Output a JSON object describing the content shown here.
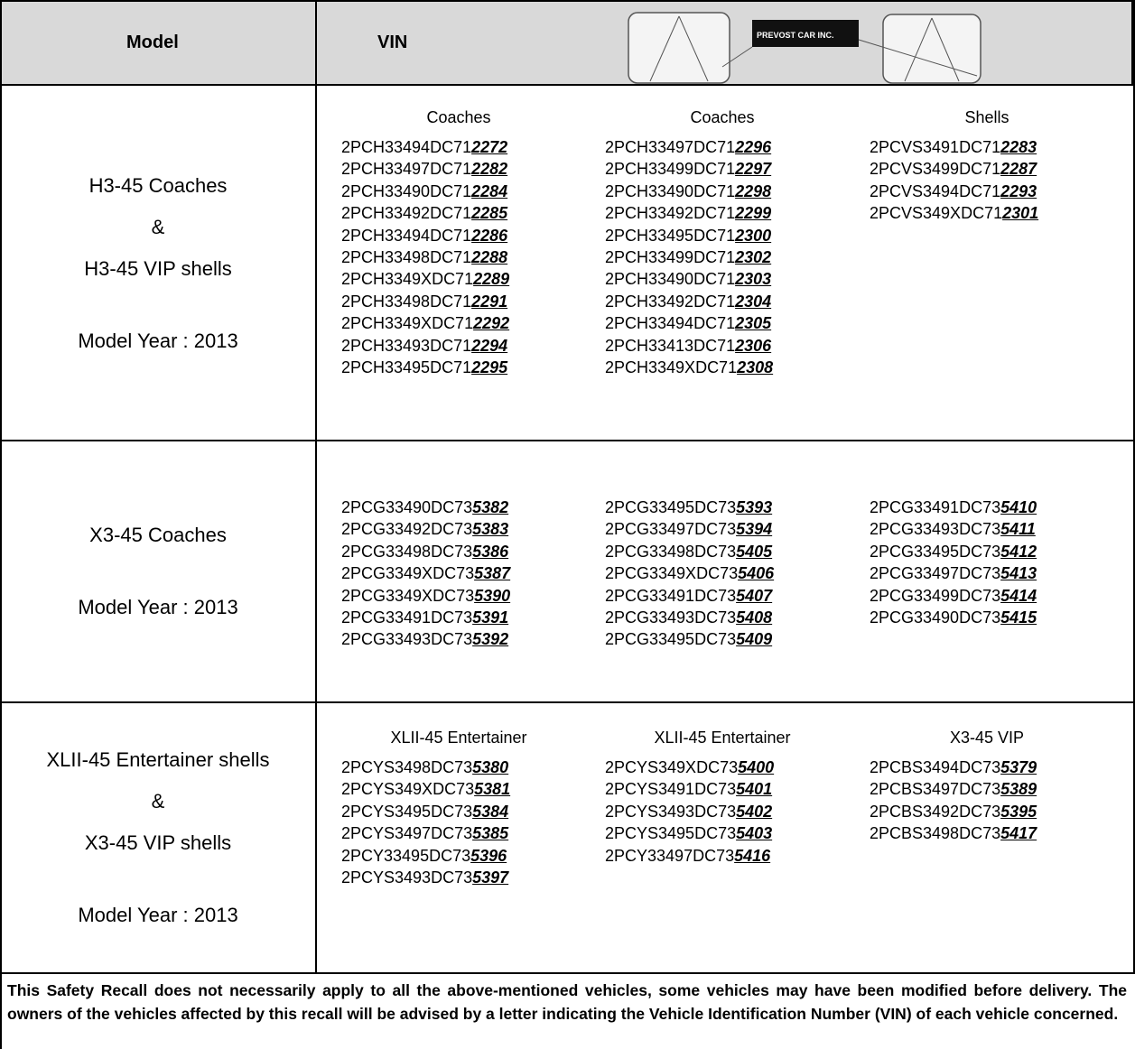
{
  "header": {
    "model": "Model",
    "vin": "VIN",
    "plate": "PREVOST CAR INC."
  },
  "rows": [
    {
      "model": [
        "H3-45 Coaches",
        "&",
        "H3-45 VIP shells",
        "Model Year : 2013"
      ],
      "groups": [
        {
          "title": "Coaches",
          "vins": [
            [
              "2PCH33494DC71",
              "2272"
            ],
            [
              "2PCH33497DC71",
              "2282"
            ],
            [
              "2PCH33490DC71",
              "2284"
            ],
            [
              "2PCH33492DC71",
              "2285"
            ],
            [
              "2PCH33494DC71",
              "2286"
            ],
            [
              "2PCH33498DC71",
              "2288"
            ],
            [
              "2PCH3349XDC71",
              "2289"
            ],
            [
              "2PCH33498DC71",
              "2291"
            ],
            [
              "2PCH3349XDC71",
              "2292"
            ],
            [
              "2PCH33493DC71",
              "2294"
            ],
            [
              "2PCH33495DC71",
              "2295"
            ]
          ]
        },
        {
          "title": "Coaches",
          "vins": [
            [
              "2PCH33497DC71",
              "2296"
            ],
            [
              "2PCH33499DC71",
              "2297"
            ],
            [
              "2PCH33490DC71",
              "2298"
            ],
            [
              "2PCH33492DC71",
              "2299"
            ],
            [
              "2PCH33495DC71",
              "2300"
            ],
            [
              "2PCH33499DC71",
              "2302"
            ],
            [
              "2PCH33490DC71",
              "2303"
            ],
            [
              "2PCH33492DC71",
              "2304"
            ],
            [
              "2PCH33494DC71",
              "2305"
            ],
            [
              "2PCH33413DC71",
              "2306"
            ],
            [
              "2PCH3349XDC71",
              "2308"
            ]
          ]
        },
        {
          "title": "Shells",
          "vins": [
            [
              "2PCVS3491DC71",
              "2283"
            ],
            [
              "2PCVS3499DC71",
              "2287"
            ],
            [
              "2PCVS3494DC71",
              "2293"
            ],
            [
              "2PCVS349XDC71",
              "2301"
            ]
          ]
        }
      ]
    },
    {
      "model": [
        "X3-45 Coaches",
        "Model Year : 2013"
      ],
      "groups": [
        {
          "vins": [
            [
              "2PCG33490DC73",
              "5382"
            ],
            [
              "2PCG33492DC73",
              "5383"
            ],
            [
              "2PCG33498DC73",
              "5386"
            ],
            [
              "2PCG3349XDC73",
              "5387"
            ],
            [
              "2PCG3349XDC73",
              "5390"
            ],
            [
              "2PCG33491DC73",
              "5391"
            ],
            [
              "2PCG33493DC73",
              "5392"
            ]
          ]
        },
        {
          "vins": [
            [
              "2PCG33495DC73",
              "5393"
            ],
            [
              "2PCG33497DC73",
              "5394"
            ],
            [
              "2PCG33498DC73",
              "5405"
            ],
            [
              "2PCG3349XDC73",
              "5406"
            ],
            [
              "2PCG33491DC73",
              "5407"
            ],
            [
              "2PCG33493DC73",
              "5408"
            ],
            [
              "2PCG33495DC73",
              "5409"
            ]
          ]
        },
        {
          "vins": [
            [
              "2PCG33491DC73",
              "5410"
            ],
            [
              "2PCG33493DC73",
              "5411"
            ],
            [
              "2PCG33495DC73",
              "5412"
            ],
            [
              "2PCG33497DC73",
              "5413"
            ],
            [
              "2PCG33499DC73",
              "5414"
            ],
            [
              "2PCG33490DC73",
              "5415"
            ]
          ]
        }
      ]
    },
    {
      "model": [
        "XLII-45 Entertainer shells",
        "&",
        "X3-45 VIP shells",
        "Model Year : 2013"
      ],
      "groups": [
        {
          "title": "XLII-45 Entertainer",
          "vins": [
            [
              "2PCYS3498DC73",
              "5380"
            ],
            [
              "2PCYS349XDC73",
              "5381"
            ],
            [
              "2PCYS3495DC73",
              "5384"
            ],
            [
              "2PCYS3497DC73",
              "5385"
            ],
            [
              "2PCY33495DC73",
              "5396"
            ],
            [
              "2PCYS3493DC73",
              "5397"
            ]
          ]
        },
        {
          "title": "XLII-45 Entertainer",
          "vins": [
            [
              "2PCYS349XDC73",
              "5400"
            ],
            [
              "2PCYS3491DC73",
              "5401"
            ],
            [
              "2PCYS3493DC73",
              "5402"
            ],
            [
              "2PCYS3495DC73",
              "5403"
            ],
            [
              "2PCY33497DC73",
              "5416"
            ]
          ]
        },
        {
          "title": "X3-45 VIP",
          "vins": [
            [
              "2PCBS3494DC73",
              "5379"
            ],
            [
              "2PCBS3497DC73",
              "5389"
            ],
            [
              "2PCBS3492DC73",
              "5395"
            ],
            [
              "2PCBS3498DC73",
              "5417"
            ]
          ]
        }
      ]
    }
  ],
  "note": "This Safety Recall does not necessarily apply to all the above-mentioned vehicles, some vehicles may have been modified before delivery. The owners of the vehicles affected by this recall will be advised by a letter indicating the Vehicle Identification Number (VIN) of each vehicle concerned."
}
